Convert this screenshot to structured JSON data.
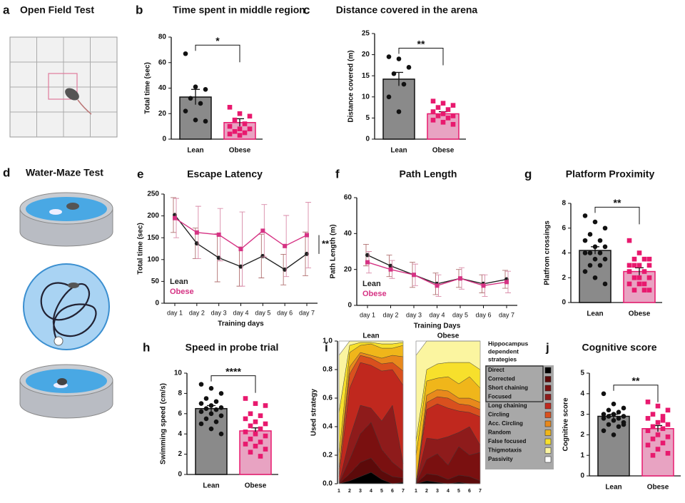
{
  "illustrations": [
    {
      "panel": "a",
      "title": "Open Field Test"
    },
    {
      "panel": "d",
      "title": "Water-Maze Test"
    }
  ],
  "chart_data": [
    {
      "type": "dotbar",
      "panel": "b",
      "title": "Time spent in middle region",
      "ylabel": "Total time (sec)",
      "categories": [
        "Lean",
        "Obese"
      ],
      "values": [
        33,
        13
      ],
      "errors": [
        6,
        3
      ],
      "points": [
        [
          67,
          41,
          39,
          32,
          28,
          22,
          15,
          14
        ],
        [
          25,
          20,
          18,
          15,
          12,
          10,
          8,
          8,
          6,
          5,
          4,
          3
        ]
      ],
      "colors": [
        "#8a8a8a",
        "#e8a3c2"
      ],
      "point_colors": [
        "#111111",
        "#e8196e"
      ],
      "ylim": [
        0,
        80
      ],
      "yticks": [
        0,
        20,
        40,
        60,
        80
      ],
      "significance": "*"
    },
    {
      "type": "dotbar",
      "panel": "c",
      "title": "Distance covered in the arena",
      "ylabel": "Distance covered (m)",
      "categories": [
        "Lean",
        "Obese"
      ],
      "values": [
        14.2,
        6
      ],
      "errors": [
        1.6,
        0.5
      ],
      "points": [
        [
          19.5,
          19,
          17,
          15.5,
          13,
          10,
          6.5
        ],
        [
          9,
          8.5,
          8,
          7.5,
          7,
          6.5,
          6,
          5.5,
          5.5,
          5,
          4.5,
          4,
          3.5
        ]
      ],
      "colors": [
        "#8a8a8a",
        "#e8a3c2"
      ],
      "point_colors": [
        "#111111",
        "#e8196e"
      ],
      "ylim": [
        0,
        25
      ],
      "yticks": [
        0,
        5,
        10,
        15,
        20,
        25
      ],
      "significance": "**"
    },
    {
      "type": "line",
      "panel": "e",
      "title": "Escape Latency",
      "ylabel": "Total time (sec)",
      "xlabel": "Training days",
      "categories": [
        "day 1",
        "day 2",
        "day 3",
        "day 4",
        "day 5",
        "day 6",
        "day 7"
      ],
      "series": [
        {
          "name": "Lean",
          "color": "#222222",
          "values": [
            202,
            137,
            104,
            84,
            108,
            77,
            113
          ],
          "errors": [
            40,
            35,
            55,
            45,
            50,
            35,
            50
          ]
        },
        {
          "name": "Obese",
          "color": "#d63384",
          "values": [
            195,
            162,
            157,
            124,
            166,
            131,
            156
          ],
          "errors": [
            45,
            60,
            60,
            85,
            60,
            70,
            75
          ]
        }
      ],
      "ylim": [
        0,
        250
      ],
      "yticks": [
        0,
        50,
        100,
        150,
        200,
        250
      ],
      "significance": "**"
    },
    {
      "type": "line",
      "panel": "f",
      "title": "Path Length",
      "ylabel": "Path Length (m)",
      "xlabel": "Training Days",
      "categories": [
        "day 1",
        "day 2",
        "day 3",
        "day 4",
        "day 5",
        "day 6",
        "day 7"
      ],
      "series": [
        {
          "name": "Lean",
          "color": "#222222",
          "values": [
            28,
            22,
            17,
            12,
            15,
            12,
            14.5
          ],
          "errors": [
            6,
            6,
            7,
            6,
            5,
            5,
            5
          ]
        },
        {
          "name": "Obese",
          "color": "#d63384",
          "values": [
            24,
            20,
            17,
            11,
            15,
            11,
            13
          ],
          "errors": [
            6,
            5,
            6,
            6,
            6,
            6,
            6
          ]
        }
      ],
      "ylim": [
        0,
        60
      ],
      "yticks": [
        0,
        20,
        40,
        60
      ]
    },
    {
      "type": "dotbar",
      "panel": "g",
      "title": "Platform Proximity",
      "ylabel": "Platfrom crossings",
      "categories": [
        "Lean",
        "Obese"
      ],
      "values": [
        4.2,
        2.5
      ],
      "errors": [
        0.3,
        0.3
      ],
      "points": [
        [
          7,
          6.5,
          6,
          5.5,
          5,
          5,
          4.5,
          4.5,
          4,
          4,
          4,
          3.5,
          3.5,
          3,
          3,
          2.5,
          2,
          1.5
        ],
        [
          5,
          4,
          3.5,
          3.5,
          3.5,
          3,
          3,
          3,
          3,
          2.5,
          2.5,
          2,
          2,
          2,
          1.5,
          1.5,
          1.5,
          1,
          1,
          1
        ]
      ],
      "colors": [
        "#8a8a8a",
        "#e8a3c2"
      ],
      "point_colors": [
        "#111111",
        "#e8196e"
      ],
      "ylim": [
        0,
        8
      ],
      "yticks": [
        0,
        2,
        4,
        6,
        8
      ],
      "significance": "**"
    },
    {
      "type": "dotbar",
      "panel": "h",
      "title": "Speed in probe trial",
      "ylabel": "Swimming speed (cm/s)",
      "categories": [
        "Lean",
        "Obese"
      ],
      "values": [
        6.5,
        4.3
      ],
      "errors": [
        0.3,
        0.3
      ],
      "points": [
        [
          8.9,
          8.5,
          8,
          7.5,
          7.2,
          7,
          6.8,
          6.6,
          6.5,
          6.4,
          6.2,
          6,
          5.8,
          5.5,
          5.2,
          5,
          4.5,
          4
        ],
        [
          7.5,
          7,
          6.8,
          6,
          5.8,
          5.5,
          5.2,
          5,
          4.8,
          4.5,
          4.2,
          4,
          3.8,
          3.5,
          3.2,
          3,
          2.8,
          2.5,
          2.2,
          1.8
        ]
      ],
      "colors": [
        "#8a8a8a",
        "#e8a3c2"
      ],
      "point_colors": [
        "#111111",
        "#e8196e"
      ],
      "ylim": [
        0,
        10
      ],
      "yticks": [
        0,
        2,
        4,
        6,
        8,
        10
      ],
      "significance": "****"
    },
    {
      "type": "stacked_area",
      "panel": "i",
      "ylabel": "Used strategy",
      "categories": [
        "1",
        "2",
        "3",
        "4",
        "5",
        "6",
        "7"
      ],
      "ylim": [
        0,
        1
      ],
      "yticks": [
        {
          "value": 0,
          "label": "0.0"
        },
        0.2,
        0.4,
        0.6,
        0.8,
        {
          "value": 1,
          "label": "1.0"
        }
      ],
      "legend_title": [
        "Hippocampus",
        "dependent",
        "strategies"
      ],
      "strategies": [
        "Direct",
        "Corrected",
        "Short chaining",
        "Focused",
        "Long chaining",
        "Circling",
        "Acc. Circling",
        "Random",
        "False focused",
        "Thigmotaxis",
        "Passivity"
      ],
      "colors": [
        "#000000",
        "#5c0a0a",
        "#7a1010",
        "#8e1b1b",
        "#c0281e",
        "#d9501e",
        "#e8891c",
        "#f0b61a",
        "#f7e02c",
        "#fbf5a0",
        "#ffffff"
      ],
      "groups": [
        {
          "name": "Lean",
          "values": [
            [
              0,
              0.02,
              0.05,
              0.08,
              0.03,
              0,
              0.01
            ],
            [
              0,
              0.05,
              0.1,
              0.1,
              0.06,
              0.05,
              0.03
            ],
            [
              0,
              0.1,
              0.2,
              0.25,
              0.15,
              0.1,
              0.05
            ],
            [
              0,
              0.15,
              0.2,
              0.1,
              0.2,
              0.4,
              0.05
            ],
            [
              0.05,
              0.35,
              0.3,
              0.3,
              0.35,
              0.25,
              0.55
            ],
            [
              0.05,
              0.1,
              0.05,
              0.05,
              0.05,
              0.05,
              0.1
            ],
            [
              0,
              0.05,
              0.02,
              0.02,
              0.04,
              0.05,
              0.1
            ],
            [
              0.1,
              0.1,
              0.05,
              0.08,
              0.07,
              0.05,
              0.08
            ],
            [
              0.3,
              0.05,
              0.02,
              0.01,
              0.03,
              0.03,
              0.02
            ],
            [
              0.4,
              0.03,
              0.01,
              0.01,
              0.02,
              0.02,
              0.01
            ],
            [
              0.1,
              0,
              0,
              0,
              0,
              0,
              0
            ]
          ]
        },
        {
          "name": "Obese",
          "values": [
            [
              0,
              0.02,
              0.01,
              0,
              0.01,
              0,
              0
            ],
            [
              0,
              0.05,
              0.05,
              0.03,
              0.05,
              0.05,
              0.02
            ],
            [
              0,
              0.1,
              0.15,
              0.1,
              0.2,
              0.15,
              0.2
            ],
            [
              0,
              0.15,
              0.1,
              0.2,
              0.1,
              0.2,
              0.05
            ],
            [
              0,
              0.2,
              0.25,
              0.2,
              0.15,
              0.1,
              0.2
            ],
            [
              0,
              0.05,
              0.05,
              0.07,
              0.05,
              0.05,
              0.05
            ],
            [
              0,
              0.05,
              0.05,
              0.05,
              0.04,
              0.05,
              0.05
            ],
            [
              0.2,
              0.1,
              0.08,
              0.1,
              0.1,
              0.15,
              0.1
            ],
            [
              0.1,
              0.08,
              0.1,
              0.1,
              0.15,
              0.1,
              0.13
            ],
            [
              0.6,
              0.2,
              0.16,
              0.15,
              0.15,
              0.15,
              0.2
            ],
            [
              0.1,
              0,
              0,
              0,
              0,
              0,
              0
            ]
          ]
        }
      ]
    },
    {
      "type": "dotbar",
      "panel": "j",
      "title": "Cognitive score",
      "ylabel": "Cognitive score",
      "categories": [
        "Lean",
        "Obese"
      ],
      "values": [
        2.9,
        2.3
      ],
      "errors": [
        0.1,
        0.15
      ],
      "points": [
        [
          4,
          3.5,
          3.3,
          3.2,
          3.1,
          3,
          3,
          2.9,
          2.9,
          2.8,
          2.8,
          2.7,
          2.6,
          2.5,
          2.4,
          2.2,
          2,
          2.5
        ],
        [
          3.6,
          3.4,
          3.2,
          3,
          2.9,
          2.8,
          2.6,
          2.5,
          2.4,
          2.3,
          2.2,
          2,
          1.9,
          1.8,
          1.6,
          1.5,
          1.3,
          1.1,
          1,
          2.7
        ]
      ],
      "colors": [
        "#8a8a8a",
        "#e8a3c2"
      ],
      "point_colors": [
        "#111111",
        "#e8196e"
      ],
      "ylim": [
        0,
        5
      ],
      "yticks": [
        0,
        1,
        2,
        3,
        4,
        5
      ],
      "significance": "**"
    }
  ]
}
